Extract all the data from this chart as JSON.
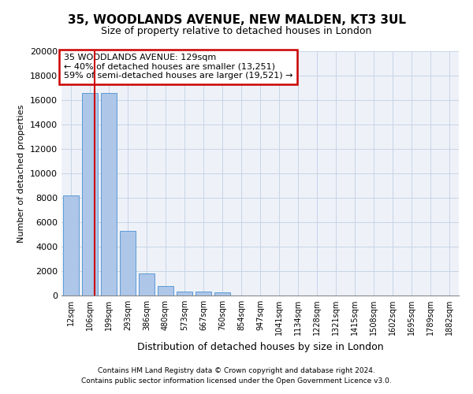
{
  "title_line1": "35, WOODLANDS AVENUE, NEW MALDEN, KT3 3UL",
  "title_line2": "Size of property relative to detached houses in London",
  "xlabel": "Distribution of detached houses by size in London",
  "ylabel": "Number of detached properties",
  "footer1": "Contains HM Land Registry data © Crown copyright and database right 2024.",
  "footer2": "Contains public sector information licensed under the Open Government Licence v3.0.",
  "annotation_line1": "35 WOODLANDS AVENUE: 129sqm",
  "annotation_line2": "← 40% of detached houses are smaller (13,251)",
  "annotation_line3": "59% of semi-detached houses are larger (19,521) →",
  "bar_color": "#aec6e8",
  "bar_edge_color": "#5b9bd5",
  "vline_color": "#cc0000",
  "annotation_box_color": "#cc0000",
  "grid_color": "#c8d4e8",
  "bg_color": "#eef2f8",
  "categories": [
    "12sqm",
    "106sqm",
    "199sqm",
    "293sqm",
    "386sqm",
    "480sqm",
    "573sqm",
    "667sqm",
    "760sqm",
    "854sqm",
    "947sqm",
    "1041sqm",
    "1134sqm",
    "1228sqm",
    "1321sqm",
    "1415sqm",
    "1508sqm",
    "1602sqm",
    "1695sqm",
    "1789sqm",
    "1882sqm"
  ],
  "values": [
    8200,
    16600,
    16600,
    5300,
    1800,
    750,
    300,
    300,
    250,
    0,
    0,
    0,
    0,
    0,
    0,
    0,
    0,
    0,
    0,
    0,
    0
  ],
  "ylim": [
    0,
    20000
  ],
  "yticks": [
    0,
    2000,
    4000,
    6000,
    8000,
    10000,
    12000,
    14000,
    16000,
    18000,
    20000
  ],
  "vline_x": 1.25
}
